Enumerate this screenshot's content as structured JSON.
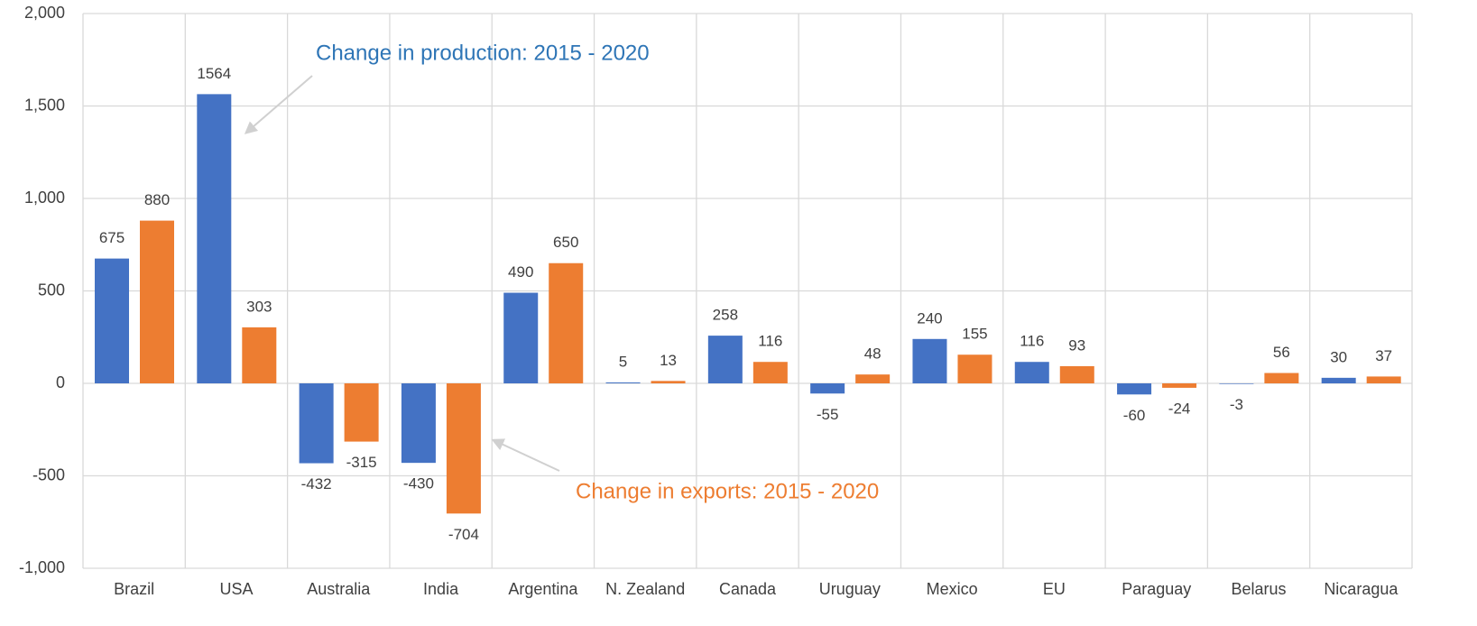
{
  "chart_data": {
    "type": "bar",
    "categories": [
      "Brazil",
      "USA",
      "Australia",
      "India",
      "Argentina",
      "N. Zealand",
      "Canada",
      "Uruguay",
      "Mexico",
      "EU",
      "Paraguay",
      "Belarus",
      "Nicaragua"
    ],
    "series": [
      {
        "name": "Change in production: 2015 - 2020",
        "color": "#4472c4",
        "values": [
          675,
          1564,
          -432,
          -430,
          490,
          5,
          258,
          -55,
          240,
          116,
          -60,
          -3,
          30
        ]
      },
      {
        "name": "Change in exports: 2015 - 2020",
        "color": "#ed7d31",
        "values": [
          880,
          303,
          -315,
          -704,
          650,
          13,
          116,
          48,
          155,
          93,
          -24,
          56,
          37
        ]
      }
    ],
    "ylim": [
      -1000,
      2000
    ],
    "yticks": [
      {
        "value": -1000,
        "label": "-1,000"
      },
      -500,
      0,
      500,
      {
        "value": 1000,
        "label": "1,000"
      },
      {
        "value": 1500,
        "label": "1,500"
      },
      {
        "value": 2000,
        "label": "2,000"
      }
    ],
    "grid": true
  }
}
